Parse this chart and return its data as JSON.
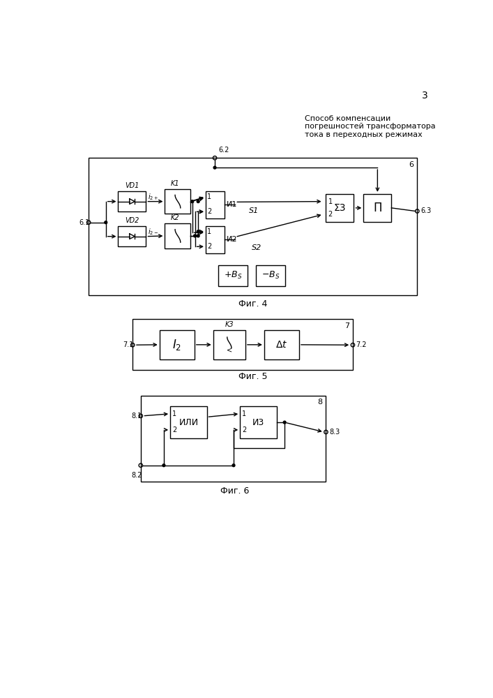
{
  "title_text": "Способ компенсации\nпогрешностей трансформатора\nтока в переходных режимах",
  "page_number": "3",
  "fig4_caption": "Фиг. 4",
  "fig5_caption": "Фиг. 5",
  "fig6_caption": "Фиг. 6",
  "bg_color": "#ffffff"
}
